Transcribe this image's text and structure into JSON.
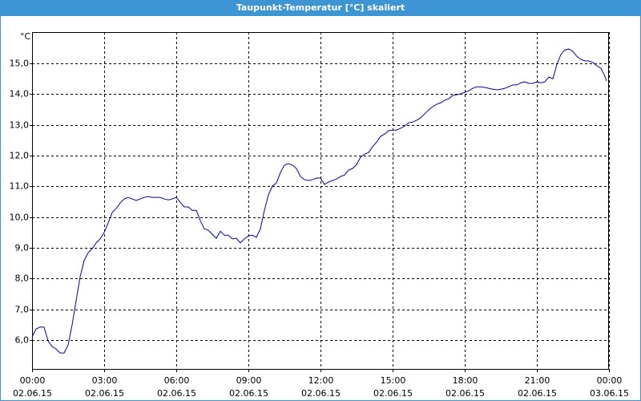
{
  "chart_data": {
    "type": "line",
    "title": "Taupunkt-Temperatur [°C] skaliert",
    "y_unit": "°C",
    "color": "#0000b0",
    "grid": true,
    "xlim": [
      0,
      1440
    ],
    "ylim": [
      5.06,
      16.02
    ],
    "xticks": [
      {
        "value": 0,
        "label": "00:00"
      },
      {
        "value": 180,
        "label": "03:00"
      },
      {
        "value": 360,
        "label": "06:00"
      },
      {
        "value": 540,
        "label": "09:00"
      },
      {
        "value": 720,
        "label": "12:00"
      },
      {
        "value": 900,
        "label": "15:00"
      },
      {
        "value": 1080,
        "label": "18:00"
      },
      {
        "value": 1260,
        "label": "21:00"
      },
      {
        "value": 1440,
        "label": "00:00"
      }
    ],
    "xtick_dates": [
      "02.06.15",
      "02.06.15",
      "02.06.15",
      "02.06.15",
      "02.06.15",
      "02.06.15",
      "02.06.15",
      "02.06.15",
      "03.06.15"
    ],
    "yticks": [
      {
        "value": 6,
        "label": "6,0"
      },
      {
        "value": 7,
        "label": "7,0"
      },
      {
        "value": 8,
        "label": "8,0"
      },
      {
        "value": 9,
        "label": "9,0"
      },
      {
        "value": 10,
        "label": "10,0"
      },
      {
        "value": 11,
        "label": "11,0"
      },
      {
        "value": 12,
        "label": "12,0"
      },
      {
        "value": 13,
        "label": "13,0"
      },
      {
        "value": 14,
        "label": "14,0"
      },
      {
        "value": 15,
        "label": "15,0"
      }
    ],
    "x": [
      0,
      10,
      20,
      30,
      40,
      50,
      60,
      70,
      80,
      90,
      100,
      110,
      120,
      130,
      140,
      150,
      160,
      170,
      180,
      190,
      200,
      210,
      220,
      230,
      240,
      250,
      260,
      270,
      280,
      290,
      300,
      310,
      320,
      330,
      340,
      350,
      360,
      370,
      380,
      390,
      400,
      410,
      420,
      430,
      440,
      450,
      460,
      470,
      480,
      490,
      500,
      510,
      520,
      530,
      540,
      550,
      560,
      570,
      580,
      590,
      600,
      610,
      620,
      630,
      640,
      650,
      660,
      670,
      680,
      690,
      700,
      710,
      720,
      730,
      740,
      750,
      760,
      770,
      780,
      790,
      800,
      810,
      820,
      830,
      840,
      850,
      860,
      870,
      880,
      890,
      900,
      910,
      920,
      930,
      940,
      950,
      960,
      970,
      980,
      990,
      1000,
      1010,
      1020,
      1030,
      1040,
      1050,
      1060,
      1070,
      1080,
      1090,
      1100,
      1110,
      1120,
      1130,
      1140,
      1150,
      1160,
      1170,
      1180,
      1190,
      1200,
      1210,
      1220,
      1230,
      1240,
      1250,
      1260,
      1270,
      1280,
      1290,
      1300,
      1310,
      1320,
      1330,
      1340,
      1350,
      1360,
      1370,
      1380,
      1390,
      1400,
      1410,
      1420,
      1430,
      1434
    ],
    "values": [
      6.1,
      6.36,
      6.42,
      6.42,
      5.97,
      5.79,
      5.71,
      5.58,
      5.58,
      5.84,
      6.49,
      7.28,
      8.06,
      8.58,
      8.84,
      8.97,
      9.16,
      9.29,
      9.5,
      9.81,
      10.15,
      10.28,
      10.46,
      10.59,
      10.64,
      10.59,
      10.54,
      10.59,
      10.64,
      10.67,
      10.64,
      10.64,
      10.64,
      10.59,
      10.56,
      10.59,
      10.64,
      10.48,
      10.33,
      10.33,
      10.22,
      10.22,
      9.88,
      9.62,
      9.57,
      9.44,
      9.31,
      9.54,
      9.41,
      9.41,
      9.29,
      9.31,
      9.16,
      9.29,
      9.39,
      9.41,
      9.34,
      9.62,
      10.22,
      10.72,
      11.01,
      11.11,
      11.45,
      11.69,
      11.74,
      11.69,
      11.58,
      11.32,
      11.22,
      11.19,
      11.22,
      11.27,
      11.27,
      11.06,
      11.14,
      11.19,
      11.24,
      11.32,
      11.37,
      11.53,
      11.58,
      11.71,
      11.95,
      12.05,
      12.1,
      12.29,
      12.44,
      12.63,
      12.7,
      12.81,
      12.83,
      12.83,
      12.89,
      12.96,
      13.07,
      13.09,
      13.15,
      13.23,
      13.36,
      13.49,
      13.59,
      13.67,
      13.72,
      13.8,
      13.85,
      13.96,
      13.98,
      14.01,
      14.06,
      14.11,
      14.19,
      14.24,
      14.24,
      14.22,
      14.19,
      14.16,
      14.14,
      14.16,
      14.19,
      14.24,
      14.3,
      14.3,
      14.37,
      14.4,
      14.35,
      14.35,
      14.4,
      14.37,
      14.4,
      14.56,
      14.5,
      14.97,
      15.29,
      15.44,
      15.47,
      15.39,
      15.23,
      15.13,
      15.08,
      15.08,
      15.03,
      14.92,
      14.84,
      14.58,
      14.43
    ]
  }
}
